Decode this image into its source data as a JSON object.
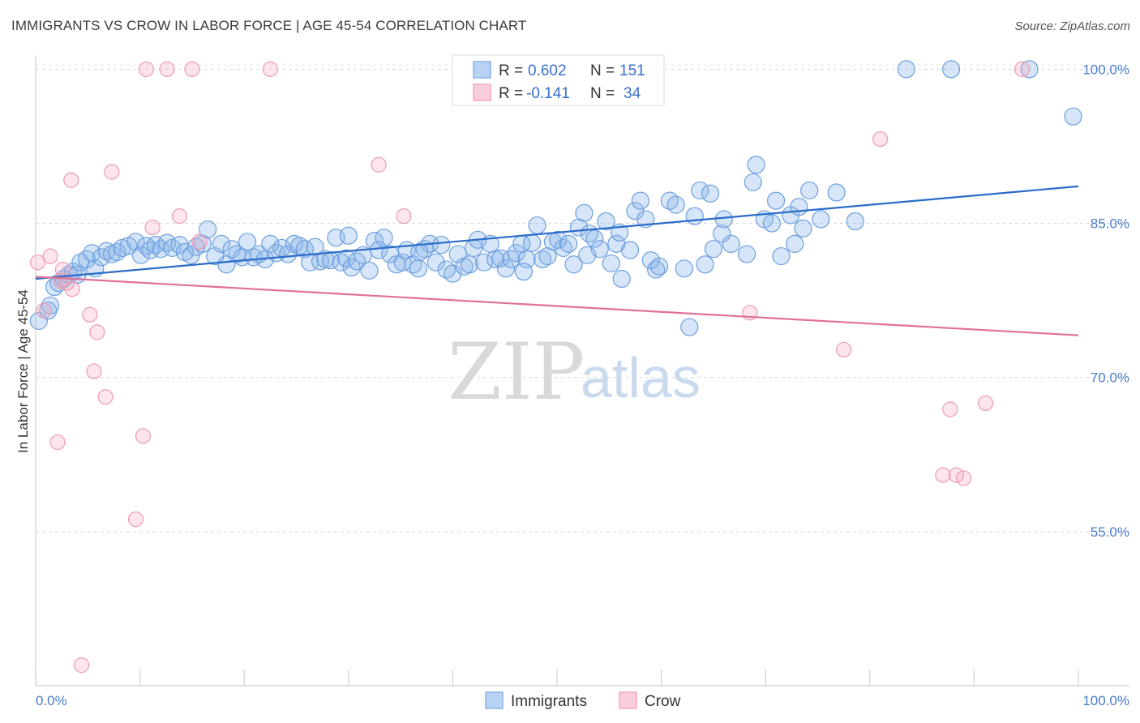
{
  "header": {
    "title": "IMMIGRANTS VS CROW IN LABOR FORCE | AGE 45-54 CORRELATION CHART",
    "source": "Source: ZipAtlas.com"
  },
  "watermark": {
    "zip": "ZIP",
    "atlas": "atlas"
  },
  "legend": {
    "rows": [
      {
        "r_label": "R =",
        "r_value": "0.602",
        "n_label": "N =",
        "n_value": "151"
      },
      {
        "r_label": "R =",
        "r_value": "-0.141",
        "n_label": "N =",
        "n_value": "34"
      }
    ]
  },
  "chart_data": {
    "type": "scatter",
    "ylabel": "In Labor Force | Age 45-54",
    "xlim": [
      0,
      100
    ],
    "ylim": [
      40,
      102
    ],
    "y_ticks": [
      {
        "value": 100,
        "label": "100.0%"
      },
      {
        "value": 85,
        "label": "85.0%"
      },
      {
        "value": 70,
        "label": "70.0%"
      },
      {
        "value": 55,
        "label": "55.0%"
      }
    ],
    "x_tick_labels": {
      "left": "0.0%",
      "right": "100.0%"
    },
    "grid": true,
    "legend_position": "top-center",
    "series": [
      {
        "name": "Immigrants",
        "color": "#8ab4e8",
        "line_color": "#2a6cc9",
        "trend": {
          "x0": 0,
          "y0": 79.6,
          "x1": 100,
          "y1": 88.6
        },
        "points": [
          [
            0.3,
            75.5
          ],
          [
            1.2,
            76.5
          ],
          [
            1.4,
            77.0
          ],
          [
            1.8,
            78.8
          ],
          [
            2.2,
            79.2
          ],
          [
            2.7,
            79.6
          ],
          [
            3.2,
            80.0
          ],
          [
            3.6,
            80.3
          ],
          [
            4.0,
            80.0
          ],
          [
            4.3,
            81.2
          ],
          [
            4.9,
            81.5
          ],
          [
            5.4,
            82.1
          ],
          [
            5.7,
            80.6
          ],
          [
            6.3,
            81.7
          ],
          [
            6.8,
            82.3
          ],
          [
            7.3,
            82.0
          ],
          [
            7.8,
            82.2
          ],
          [
            8.3,
            82.6
          ],
          [
            8.9,
            82.8
          ],
          [
            9.6,
            83.2
          ],
          [
            10.1,
            81.9
          ],
          [
            10.6,
            82.8
          ],
          [
            11.0,
            82.4
          ],
          [
            11.5,
            82.9
          ],
          [
            12.0,
            82.5
          ],
          [
            12.6,
            83.1
          ],
          [
            13.1,
            82.6
          ],
          [
            13.8,
            82.9
          ],
          [
            14.3,
            82.2
          ],
          [
            14.9,
            81.9
          ],
          [
            15.4,
            82.7
          ],
          [
            16.0,
            83.0
          ],
          [
            16.5,
            84.4
          ],
          [
            17.2,
            81.8
          ],
          [
            17.8,
            83.0
          ],
          [
            18.3,
            81.0
          ],
          [
            18.8,
            82.5
          ],
          [
            19.3,
            82.0
          ],
          [
            19.8,
            81.7
          ],
          [
            20.3,
            83.2
          ],
          [
            20.9,
            81.7
          ],
          [
            21.4,
            82.0
          ],
          [
            22.0,
            81.5
          ],
          [
            22.5,
            83.0
          ],
          [
            23.1,
            82.1
          ],
          [
            23.6,
            82.6
          ],
          [
            24.2,
            82.0
          ],
          [
            24.8,
            83.0
          ],
          [
            25.3,
            82.8
          ],
          [
            25.8,
            82.5
          ],
          [
            26.3,
            81.2
          ],
          [
            26.8,
            82.7
          ],
          [
            27.3,
            81.3
          ],
          [
            27.8,
            81.5
          ],
          [
            28.3,
            81.4
          ],
          [
            28.8,
            83.6
          ],
          [
            29.3,
            81.2
          ],
          [
            29.8,
            81.6
          ],
          [
            30.3,
            80.7
          ],
          [
            30.8,
            81.3
          ],
          [
            31.4,
            81.9
          ],
          [
            32.0,
            80.4
          ],
          [
            32.5,
            83.3
          ],
          [
            32.9,
            82.4
          ],
          [
            33.4,
            83.6
          ],
          [
            34.0,
            82.0
          ],
          [
            34.6,
            81.0
          ],
          [
            35.2,
            81.2
          ],
          [
            35.6,
            82.4
          ],
          [
            36.2,
            81.0
          ],
          [
            36.7,
            80.6
          ],
          [
            37.3,
            82.5
          ],
          [
            37.8,
            83.0
          ],
          [
            38.4,
            81.2
          ],
          [
            38.9,
            82.9
          ],
          [
            39.4,
            80.5
          ],
          [
            40.0,
            80.1
          ],
          [
            40.5,
            82.0
          ],
          [
            41.1,
            80.8
          ],
          [
            41.6,
            81.0
          ],
          [
            42.0,
            82.6
          ],
          [
            42.4,
            83.4
          ],
          [
            43.0,
            81.2
          ],
          [
            43.6,
            83.0
          ],
          [
            44.1,
            81.5
          ],
          [
            44.6,
            81.6
          ],
          [
            45.1,
            80.6
          ],
          [
            45.6,
            81.5
          ],
          [
            46.1,
            82.1
          ],
          [
            46.6,
            83.0
          ],
          [
            47.1,
            81.5
          ],
          [
            47.6,
            83.1
          ],
          [
            48.1,
            84.8
          ],
          [
            48.6,
            81.5
          ],
          [
            49.1,
            81.8
          ],
          [
            49.6,
            83.2
          ],
          [
            50.1,
            83.4
          ],
          [
            50.6,
            82.6
          ],
          [
            51.1,
            83.0
          ],
          [
            51.6,
            81.0
          ],
          [
            52.1,
            84.6
          ],
          [
            52.6,
            86.0
          ],
          [
            53.1,
            84.0
          ],
          [
            53.6,
            83.5
          ],
          [
            54.1,
            82.5
          ],
          [
            54.7,
            85.2
          ],
          [
            55.2,
            81.1
          ],
          [
            55.7,
            83.0
          ],
          [
            56.2,
            79.6
          ],
          [
            57.0,
            82.4
          ],
          [
            57.5,
            86.2
          ],
          [
            58.0,
            87.2
          ],
          [
            58.5,
            85.4
          ],
          [
            59.0,
            81.4
          ],
          [
            59.5,
            80.5
          ],
          [
            59.8,
            80.8
          ],
          [
            60.8,
            87.2
          ],
          [
            61.4,
            86.8
          ],
          [
            62.2,
            80.6
          ],
          [
            62.7,
            74.9
          ],
          [
            63.2,
            85.7
          ],
          [
            63.7,
            88.2
          ],
          [
            64.2,
            81.0
          ],
          [
            64.7,
            87.9
          ],
          [
            65.0,
            82.5
          ],
          [
            66.0,
            85.4
          ],
          [
            66.7,
            83.0
          ],
          [
            68.2,
            82.0
          ],
          [
            68.8,
            89.0
          ],
          [
            69.1,
            90.7
          ],
          [
            69.9,
            85.4
          ],
          [
            70.6,
            85.0
          ],
          [
            71.0,
            87.2
          ],
          [
            72.4,
            85.8
          ],
          [
            72.8,
            83.0
          ],
          [
            73.2,
            86.6
          ],
          [
            73.6,
            84.5
          ],
          [
            74.2,
            88.2
          ],
          [
            75.3,
            85.4
          ],
          [
            76.8,
            88.0
          ],
          [
            78.6,
            85.2
          ],
          [
            83.5,
            100.0
          ],
          [
            87.8,
            100.0
          ],
          [
            95.3,
            100.0
          ],
          [
            99.5,
            95.4
          ],
          [
            56.0,
            84.1
          ],
          [
            65.8,
            84.0
          ],
          [
            71.5,
            81.8
          ],
          [
            30.0,
            83.8
          ],
          [
            36.8,
            82.2
          ],
          [
            46.8,
            80.3
          ],
          [
            52.9,
            81.9
          ]
        ]
      },
      {
        "name": "Crow",
        "color": "#f4a9c0",
        "line_color": "#e07098",
        "trend": {
          "x0": 0,
          "y0": 79.8,
          "x1": 100,
          "y1": 74.1
        },
        "points": [
          [
            0.2,
            81.2
          ],
          [
            0.8,
            76.5
          ],
          [
            1.4,
            81.8
          ],
          [
            2.1,
            63.7
          ],
          [
            2.4,
            79.4
          ],
          [
            2.6,
            80.5
          ],
          [
            3.0,
            79.2
          ],
          [
            3.4,
            89.2
          ],
          [
            3.5,
            78.6
          ],
          [
            4.4,
            42.0
          ],
          [
            5.2,
            76.1
          ],
          [
            5.6,
            70.6
          ],
          [
            5.9,
            74.4
          ],
          [
            6.7,
            68.1
          ],
          [
            7.3,
            90.0
          ],
          [
            9.6,
            56.2
          ],
          [
            10.3,
            64.3
          ],
          [
            10.6,
            100.0
          ],
          [
            11.2,
            84.6
          ],
          [
            12.6,
            100.0
          ],
          [
            13.8,
            85.7
          ],
          [
            15.0,
            100.0
          ],
          [
            15.7,
            83.2
          ],
          [
            22.5,
            100.0
          ],
          [
            32.9,
            90.7
          ],
          [
            35.3,
            85.7
          ],
          [
            68.5,
            76.3
          ],
          [
            77.5,
            72.7
          ],
          [
            81.0,
            93.2
          ],
          [
            87.0,
            60.5
          ],
          [
            87.7,
            66.9
          ],
          [
            88.3,
            60.5
          ],
          [
            89.0,
            60.2
          ],
          [
            91.1,
            67.5
          ],
          [
            94.6,
            100.0
          ]
        ]
      }
    ]
  }
}
